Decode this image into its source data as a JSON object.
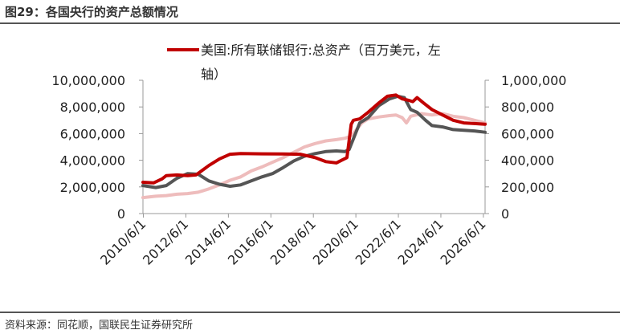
{
  "header": {
    "title": "图29：各国央行的资产总额情况"
  },
  "footer": {
    "source": "资料来源：同花顺，国联民生证券研究所"
  },
  "chart_data": {
    "type": "line",
    "legend": {
      "placement": "top",
      "entries": [
        "美国:所有联储银行:总资产（百万美元，左",
        "轴）"
      ]
    },
    "left_axis": {
      "ylim": [
        0,
        10000000
      ],
      "ticks": [
        "0",
        "2,000,000",
        "4,000,000",
        "6,000,000",
        "8,000,000",
        "10,000,000"
      ]
    },
    "right_axis": {
      "ylim": [
        0,
        1000000
      ],
      "ticks": [
        "0",
        "200,000",
        "400,000",
        "600,000",
        "800,000",
        "1,000,000"
      ]
    },
    "x_ticks": [
      "2010/6/1",
      "2012/6/1",
      "2014/6/1",
      "2016/6/1",
      "2018/6/1",
      "2020/6/1",
      "2022/6/1",
      "2024/6/1",
      "2026/6/1"
    ],
    "series": [
      {
        "name": "美国:所有联储银行:总资产（百万美元，左轴）",
        "axis": "left",
        "color": "#c00000",
        "x": [
          2010.4,
          2010.9,
          2011.3,
          2011.5,
          2012.0,
          2012.5,
          2012.9,
          2013.5,
          2014.0,
          2014.5,
          2015.0,
          2016.0,
          2017.0,
          2017.8,
          2018.5,
          2019.0,
          2019.5,
          2019.75,
          2020.0,
          2020.2,
          2020.3,
          2020.6,
          2021.0,
          2021.5,
          2021.9,
          2022.3,
          2022.6,
          2022.9,
          2023.1,
          2023.3,
          2023.6,
          2024.0,
          2024.5,
          2025.0,
          2025.5,
          2026.0,
          2026.5
        ],
        "values": [
          2350000,
          2300000,
          2600000,
          2850000,
          2900000,
          2850000,
          2900000,
          3600000,
          4100000,
          4450000,
          4500000,
          4480000,
          4470000,
          4450000,
          4200000,
          3900000,
          3800000,
          4000000,
          4200000,
          6700000,
          7000000,
          7100000,
          7600000,
          8300000,
          8800000,
          8900000,
          8600000,
          8500000,
          8400000,
          8700000,
          8300000,
          7800000,
          7400000,
          7000000,
          6800000,
          6750000,
          6700000
        ]
      },
      {
        "name": "",
        "axis": "right",
        "color": "#555555",
        "x": [
          2010.4,
          2011.0,
          2011.5,
          2012.0,
          2012.5,
          2013.0,
          2013.5,
          2014.0,
          2014.5,
          2015.0,
          2015.5,
          2016.0,
          2016.5,
          2017.0,
          2017.5,
          2018.0,
          2018.5,
          2019.0,
          2019.5,
          2019.9,
          2020.1,
          2020.3,
          2020.6,
          2021.0,
          2021.5,
          2022.0,
          2022.4,
          2022.7,
          2023.0,
          2023.3,
          2023.7,
          2024.0,
          2024.5,
          2025.0,
          2025.5,
          2026.0,
          2026.5
        ],
        "values": [
          210000,
          195000,
          210000,
          265000,
          300000,
          295000,
          245000,
          220000,
          205000,
          215000,
          245000,
          275000,
          300000,
          345000,
          395000,
          430000,
          450000,
          465000,
          470000,
          465000,
          480000,
          560000,
          680000,
          720000,
          810000,
          860000,
          880000,
          870000,
          780000,
          760000,
          700000,
          660000,
          650000,
          630000,
          625000,
          620000,
          610000
        ]
      },
      {
        "name": "",
        "axis": "right",
        "color": "#eebcbc",
        "x": [
          2010.4,
          2011.0,
          2011.5,
          2012.0,
          2012.5,
          2013.0,
          2013.5,
          2014.0,
          2014.5,
          2015.0,
          2015.5,
          2016.0,
          2016.5,
          2017.0,
          2017.5,
          2018.0,
          2018.5,
          2019.0,
          2019.5,
          2019.9,
          2020.1,
          2020.3,
          2020.7,
          2021.0,
          2021.5,
          2022.0,
          2022.3,
          2022.6,
          2022.8,
          2023.0,
          2023.5,
          2024.0,
          2024.5,
          2025.0,
          2025.5,
          2026.0,
          2026.5
        ],
        "values": [
          120000,
          130000,
          135000,
          145000,
          150000,
          160000,
          185000,
          215000,
          250000,
          275000,
          320000,
          350000,
          385000,
          420000,
          460000,
          500000,
          525000,
          545000,
          555000,
          565000,
          575000,
          600000,
          680000,
          710000,
          725000,
          735000,
          740000,
          720000,
          680000,
          730000,
          750000,
          740000,
          750000,
          730000,
          720000,
          700000,
          680000
        ]
      }
    ]
  }
}
